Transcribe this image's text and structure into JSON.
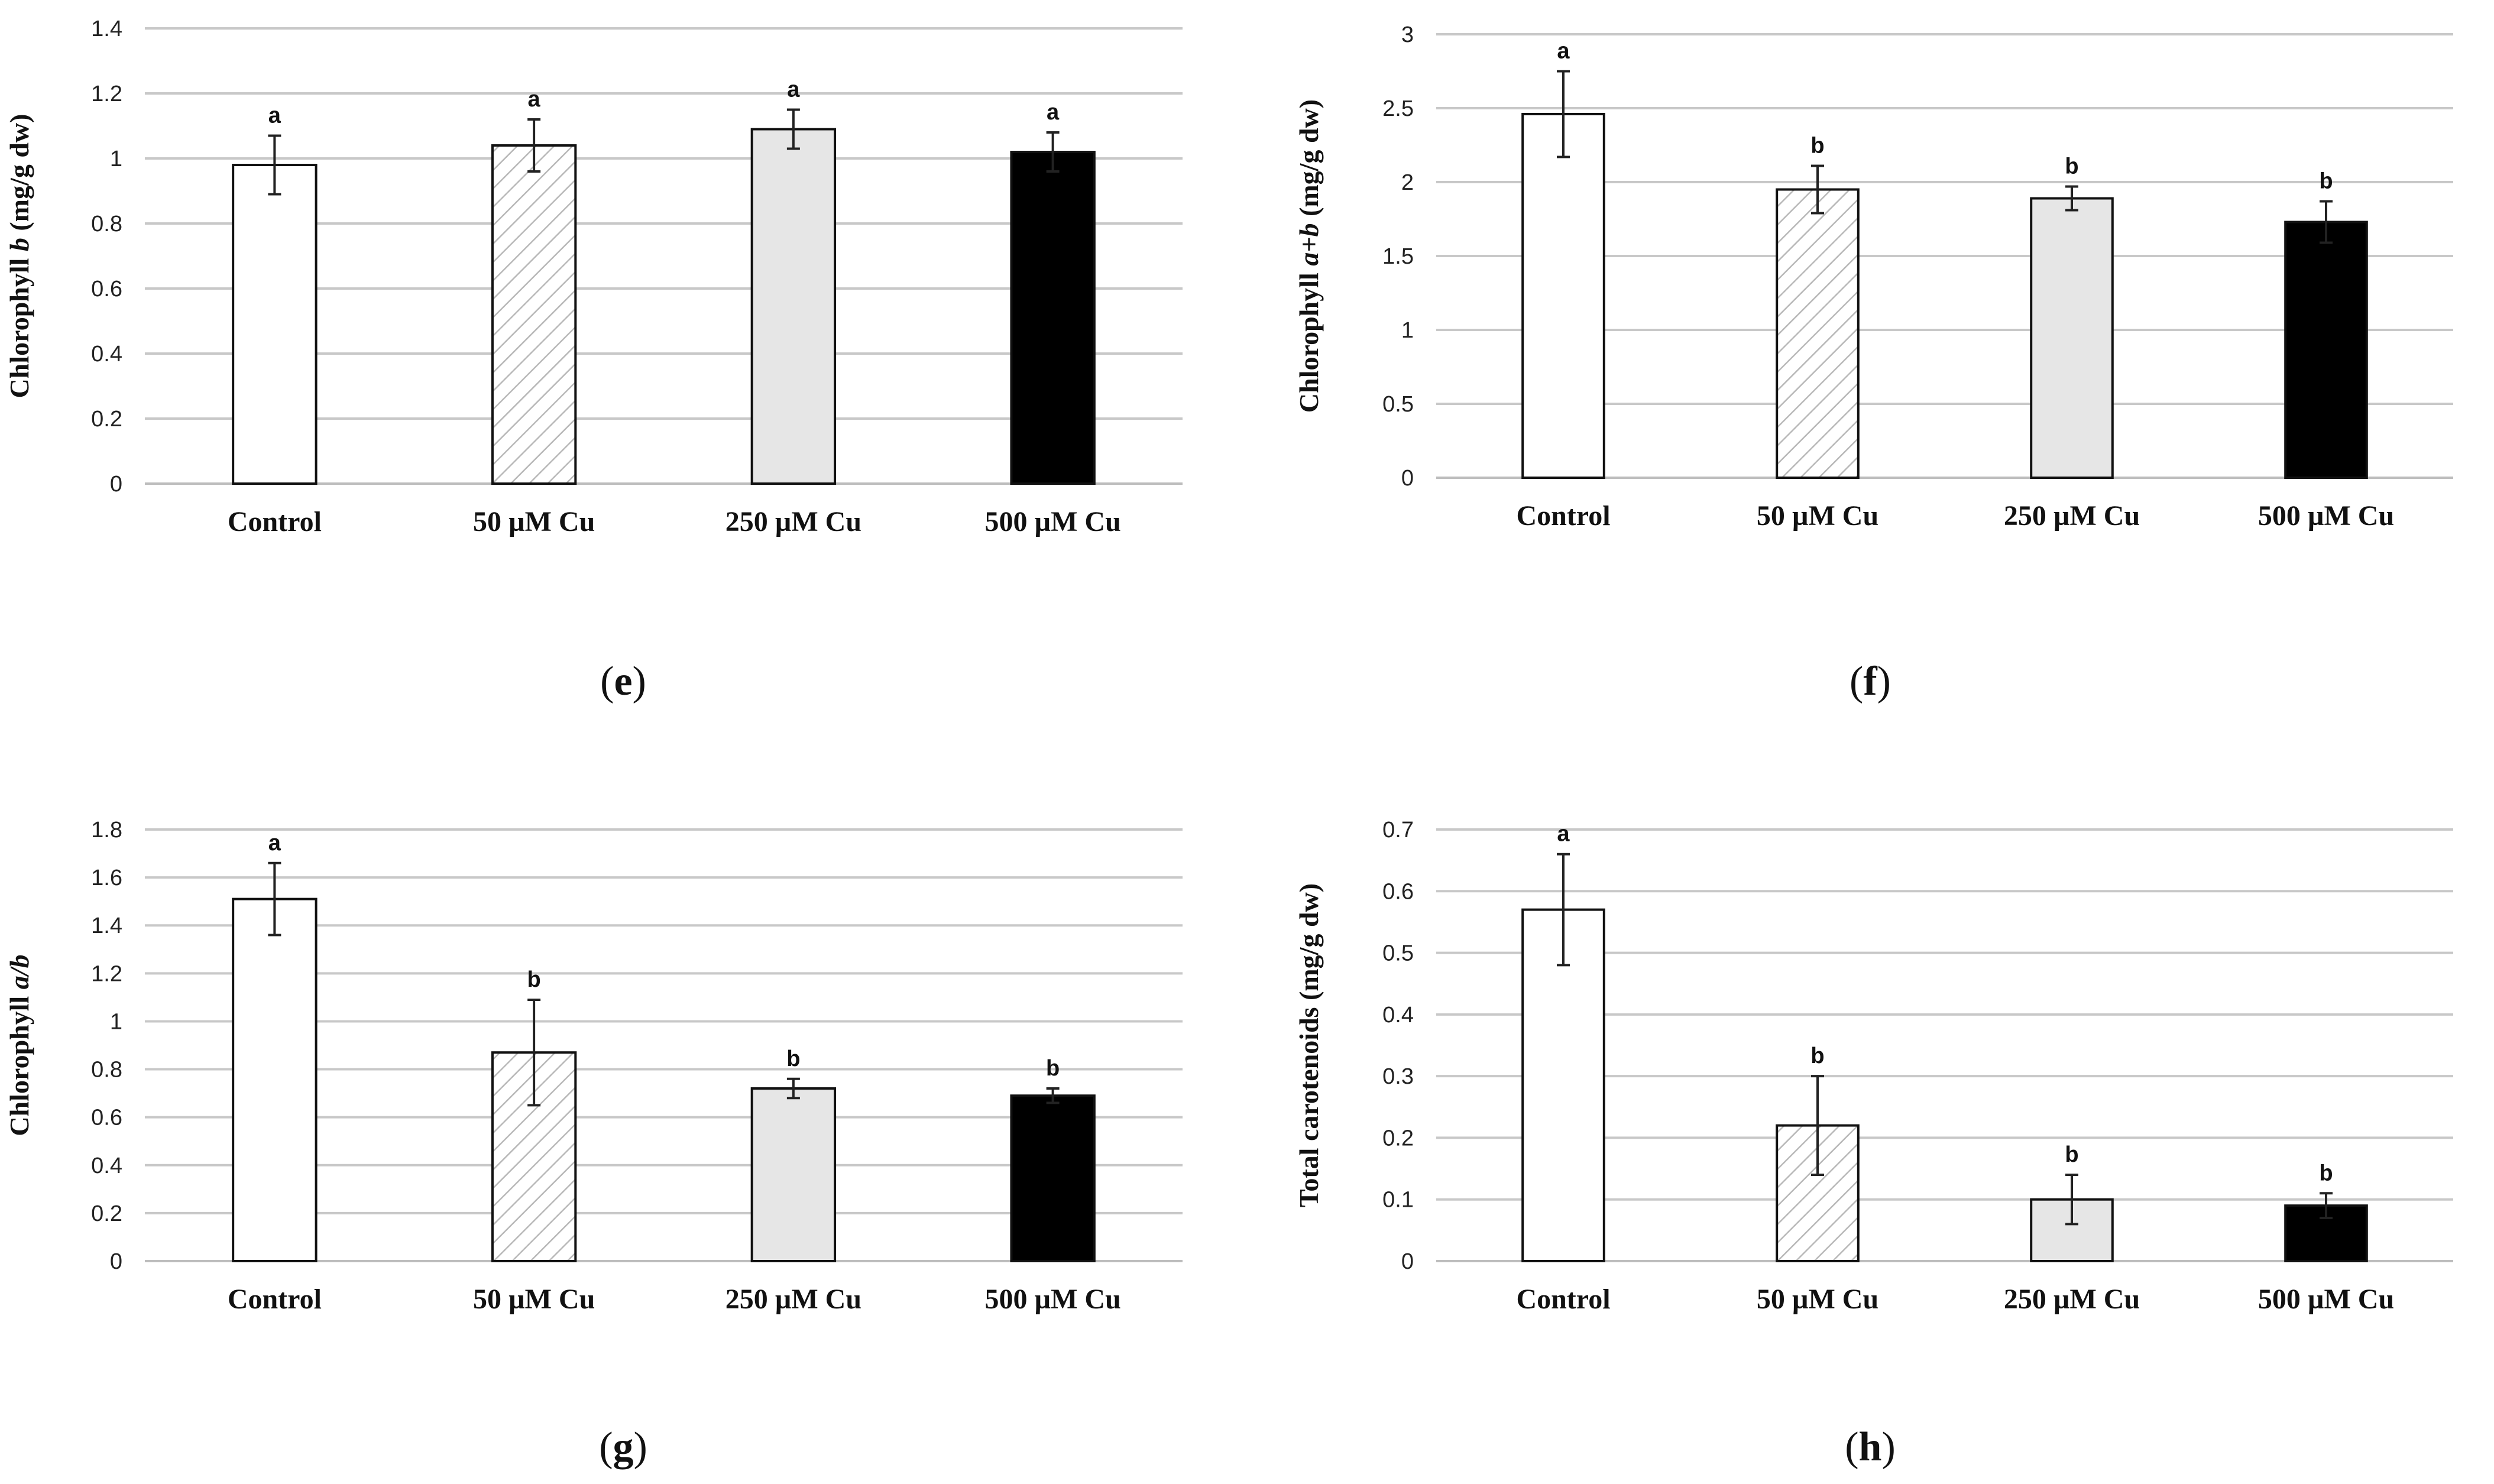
{
  "chart_data": [
    {
      "type": "bar",
      "panel_label": "(e)",
      "ylabel_prefix": "Chlorophyll ",
      "ylabel_italic": "b",
      "ylabel_suffix": " (mg/g dw)",
      "categories": [
        "Control",
        "50 µM Cu",
        "250 µM Cu",
        "500 µM Cu"
      ],
      "values": [
        0.98,
        1.04,
        1.09,
        1.02
      ],
      "errors": [
        0.09,
        0.08,
        0.06,
        0.06
      ],
      "letters": [
        "a",
        "a",
        "a",
        "a"
      ],
      "ylim": [
        0,
        1.4
      ],
      "yticks": [
        0,
        0.2,
        0.4,
        0.6,
        0.8,
        1,
        1.2,
        1.4
      ],
      "ytick_labels": [
        "0",
        "0.2",
        "0.4",
        "0.6",
        "0.8",
        "1",
        "1.2",
        "1.4"
      ],
      "grid": true
    },
    {
      "type": "bar",
      "panel_label": "(f)",
      "ylabel_prefix": "Chlorophyll ",
      "ylabel_italic": "a+b",
      "ylabel_suffix": " (mg/g dw)",
      "categories": [
        "Control",
        "50 µM Cu",
        "250 µM Cu",
        "500 µM Cu"
      ],
      "values": [
        2.46,
        1.95,
        1.89,
        1.73
      ],
      "errors": [
        0.29,
        0.16,
        0.08,
        0.14
      ],
      "letters": [
        "a",
        "b",
        "b",
        "b"
      ],
      "ylim": [
        0,
        3
      ],
      "yticks": [
        0,
        0.5,
        1,
        1.5,
        2,
        2.5,
        3
      ],
      "ytick_labels": [
        "0",
        "0.5",
        "1",
        "1.5",
        "2",
        "2.5",
        "3"
      ],
      "grid": true
    },
    {
      "type": "bar",
      "panel_label": "(g)",
      "ylabel_prefix": "Chlorophyll ",
      "ylabel_italic": "a/b",
      "ylabel_suffix": "",
      "categories": [
        "Control",
        "50 µM Cu",
        "250 µM Cu",
        "500 µM Cu"
      ],
      "values": [
        1.51,
        0.87,
        0.72,
        0.69
      ],
      "errors": [
        0.15,
        0.22,
        0.04,
        0.03
      ],
      "letters": [
        "a",
        "b",
        "b",
        "b"
      ],
      "ylim": [
        0,
        1.8
      ],
      "yticks": [
        0,
        0.2,
        0.4,
        0.6,
        0.8,
        1,
        1.2,
        1.4,
        1.6,
        1.8
      ],
      "ytick_labels": [
        "0",
        "0.2",
        "0.4",
        "0.6",
        "0.8",
        "1",
        "1.2",
        "1.4",
        "1.6",
        "1.8"
      ],
      "grid": true
    },
    {
      "type": "bar",
      "panel_label": "(h)",
      "ylabel_prefix": "Total carotenoids (mg/g dw)",
      "ylabel_italic": "",
      "ylabel_suffix": "",
      "categories": [
        "Control",
        "50 µM Cu",
        "250 µM Cu",
        "500 µM Cu"
      ],
      "values": [
        0.57,
        0.22,
        0.1,
        0.09
      ],
      "errors": [
        0.09,
        0.08,
        0.04,
        0.02
      ],
      "letters": [
        "a",
        "b",
        "b",
        "b"
      ],
      "ylim": [
        0,
        0.7
      ],
      "yticks": [
        0,
        0.1,
        0.2,
        0.3,
        0.4,
        0.5,
        0.6,
        0.7
      ],
      "ytick_labels": [
        "0",
        "0.1",
        "0.2",
        "0.3",
        "0.4",
        "0.5",
        "0.6",
        "0.7"
      ],
      "grid": true
    }
  ],
  "colors": {
    "control_fill": "#ffffff",
    "cu50_hatch": "#b8b8b8",
    "cu250_fill": "#e6e6e6",
    "cu500_fill": "#000000"
  }
}
